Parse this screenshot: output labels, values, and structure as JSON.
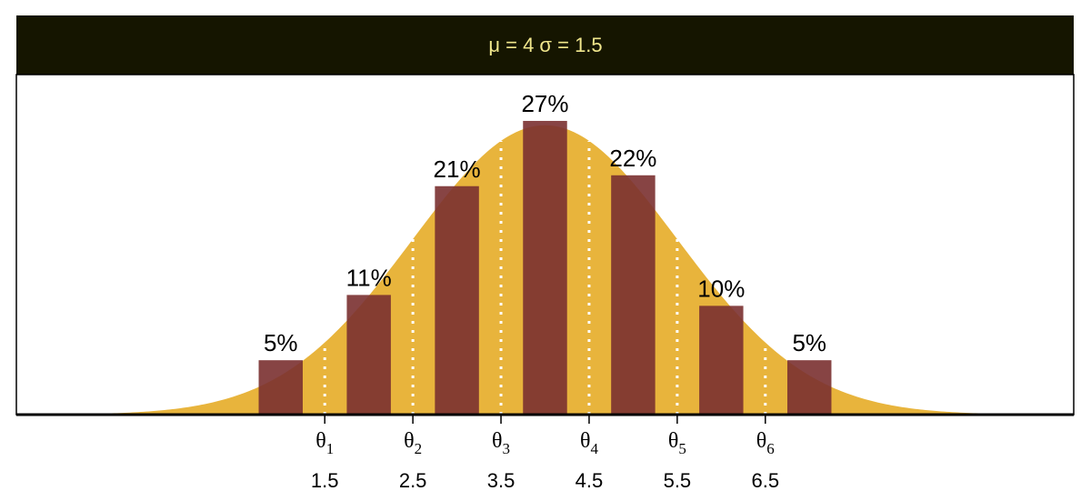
{
  "strip": {
    "title": "μ = 4  σ = 1.5",
    "background": "#151500",
    "text_color": "#f0e68c"
  },
  "chart_data": {
    "type": "bar",
    "title": "μ = 4  σ = 1.5",
    "xlabel": "",
    "ylabel": "",
    "distribution": {
      "mu": 4,
      "sigma": 1.5
    },
    "categories": [
      "1",
      "2",
      "3",
      "4",
      "5",
      "6",
      "7"
    ],
    "values": [
      0.05,
      0.11,
      0.21,
      0.27,
      0.22,
      0.1,
      0.05
    ],
    "value_labels": [
      "5%",
      "11%",
      "21%",
      "27%",
      "22%",
      "10%",
      "5%"
    ],
    "thresholds": [
      {
        "symbol": "θ",
        "subscript": "1",
        "value": 1.5
      },
      {
        "symbol": "θ",
        "subscript": "2",
        "value": 2.5
      },
      {
        "symbol": "θ",
        "subscript": "3",
        "value": 3.5
      },
      {
        "symbol": "θ",
        "subscript": "4",
        "value": 4.5
      },
      {
        "symbol": "θ",
        "subscript": "5",
        "value": 5.5
      },
      {
        "symbol": "θ",
        "subscript": "6",
        "value": 6.5
      }
    ],
    "tick_labels": [
      "1.5",
      "2.5",
      "3.5",
      "4.5",
      "5.5",
      "6.5"
    ],
    "xlim": [
      -2,
      10
    ],
    "ylim": [
      0,
      0.28
    ],
    "grid": false,
    "colors": {
      "curve_fill": "#e8b43c",
      "bar_fill": "#7a3030",
      "threshold_line": "#ffffff",
      "axis": "#000000"
    }
  }
}
